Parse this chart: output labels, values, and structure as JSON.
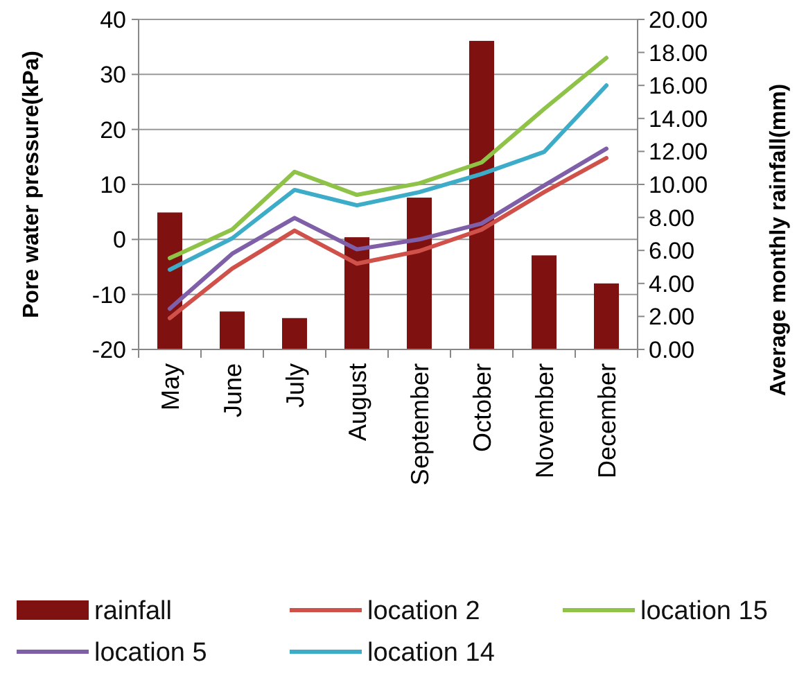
{
  "chart_data": {
    "type": "bar",
    "categories": [
      "May",
      "June",
      "July",
      "August",
      "September",
      "October",
      "November",
      "December"
    ],
    "ylabel": "Pore water pressure(kPa)",
    "y2label": "Average monthly rainfall(mm)",
    "ylim": [
      -20,
      40
    ],
    "yticks": [
      -20,
      -10,
      0,
      10,
      20,
      30,
      40
    ],
    "y2lim": [
      0,
      20
    ],
    "y2ticks": [
      {
        "value": 0,
        "label": "0.00"
      },
      {
        "value": 2,
        "label": "2.00"
      },
      {
        "value": 4,
        "label": "4.00"
      },
      {
        "value": 6,
        "label": "6.00"
      },
      {
        "value": 8,
        "label": "8.00"
      },
      {
        "value": 10,
        "label": "10.00"
      },
      {
        "value": 12,
        "label": "12.00"
      },
      {
        "value": 14,
        "label": "14.00"
      },
      {
        "value": 16,
        "label": "16.00"
      },
      {
        "value": 18,
        "label": "18.00"
      },
      {
        "value": 20,
        "label": "20.00"
      }
    ],
    "grid": "y",
    "legend": "bottom",
    "marker": "none",
    "line_style": "solid",
    "series": [
      {
        "name": "rainfall",
        "axis": "y2",
        "color": "#7f1111",
        "values": [
          8.3,
          2.3,
          1.9,
          6.8,
          9.2,
          18.7,
          5.7,
          4.0
        ]
      },
      {
        "name": "location 2",
        "type": "line",
        "color": "#d0504a",
        "values": [
          -14.3,
          -5.3,
          1.6,
          -4.4,
          -2.1,
          1.8,
          8.6,
          14.8
        ]
      },
      {
        "name": "location 15",
        "type": "line",
        "color": "#8fc347",
        "values": [
          -3.4,
          1.8,
          12.3,
          8.1,
          10.2,
          14,
          23.7,
          33
        ]
      },
      {
        "name": "location 5",
        "type": "line",
        "color": "#7f5fa8",
        "values": [
          -12.6,
          -2.6,
          3.9,
          -1.8,
          0,
          2.9,
          9.8,
          16.5
        ]
      },
      {
        "name": "location 14",
        "type": "line",
        "color": "#3cacc8",
        "values": [
          -5.5,
          0.2,
          9,
          6.2,
          8.6,
          11.9,
          15.9,
          28
        ]
      }
    ]
  }
}
